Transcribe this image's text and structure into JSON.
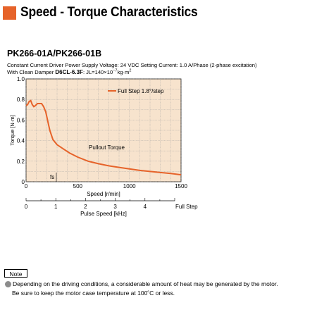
{
  "header": {
    "title": "Speed - Torque Characteristics",
    "accent_color": "#e6632a"
  },
  "model": "PK266-01A/PK266-01B",
  "conditions": {
    "line1": "Constant Current Driver  Power Supply Voltage: 24 VDC   Setting Current: 1.0 A/Phase (2-phase excitation)",
    "damper_prefix": "With Clean Damper ",
    "damper_name": "D6CL-6.3F",
    "inertia_text": ": JL=140×10",
    "inertia_exp": "−7",
    "inertia_unit": "kg·m",
    "inertia_unit_exp": "2"
  },
  "chart_data": {
    "type": "line",
    "xlabel": "Speed [r/min]",
    "ylabel": "Torque [N·m]",
    "xlim": [
      0,
      1500
    ],
    "ylim": [
      0,
      1.0
    ],
    "x_ticks": [
      0,
      500,
      1000,
      1500
    ],
    "y_ticks": [
      "0",
      "0.2",
      "0.4",
      "0.6",
      "0.8",
      "1.0"
    ],
    "grid": true,
    "background_color": "#f7e3cd",
    "line_color": "#e6632a",
    "legend": {
      "position": "top-right",
      "entries": [
        "Full Step 1.8°/step"
      ]
    },
    "series": [
      {
        "name": "Full Step 1.8°/step",
        "x": [
          0,
          15,
          30,
          45,
          60,
          75,
          90,
          110,
          130,
          150,
          170,
          190,
          210,
          230,
          260,
          300,
          360,
          420,
          500,
          600,
          700,
          800,
          900,
          1000,
          1100,
          1200,
          1300,
          1400,
          1500
        ],
        "y": [
          0.74,
          0.75,
          0.78,
          0.79,
          0.75,
          0.73,
          0.74,
          0.76,
          0.76,
          0.76,
          0.73,
          0.68,
          0.59,
          0.5,
          0.41,
          0.36,
          0.32,
          0.28,
          0.24,
          0.2,
          0.175,
          0.155,
          0.14,
          0.125,
          0.11,
          0.1,
          0.09,
          0.08,
          0.068
        ]
      }
    ],
    "annotations": [
      {
        "text": "Pullout Torque",
        "x": 630,
        "y": 0.32
      },
      {
        "text": "fs",
        "x": 230,
        "y": 0.04
      }
    ],
    "secondary_axis": {
      "label": "Pulse Speed [kHz]",
      "suffix_label": "Full Step",
      "ticks": [
        0,
        1,
        2,
        3,
        4
      ],
      "range": [
        0,
        5
      ]
    }
  },
  "note": {
    "label": "Note",
    "line1": "Depending on the driving conditions, a considerable amount of heat may be generated by the motor.",
    "line2": "Be sure to keep the motor case temperature at 100˚C or less."
  }
}
